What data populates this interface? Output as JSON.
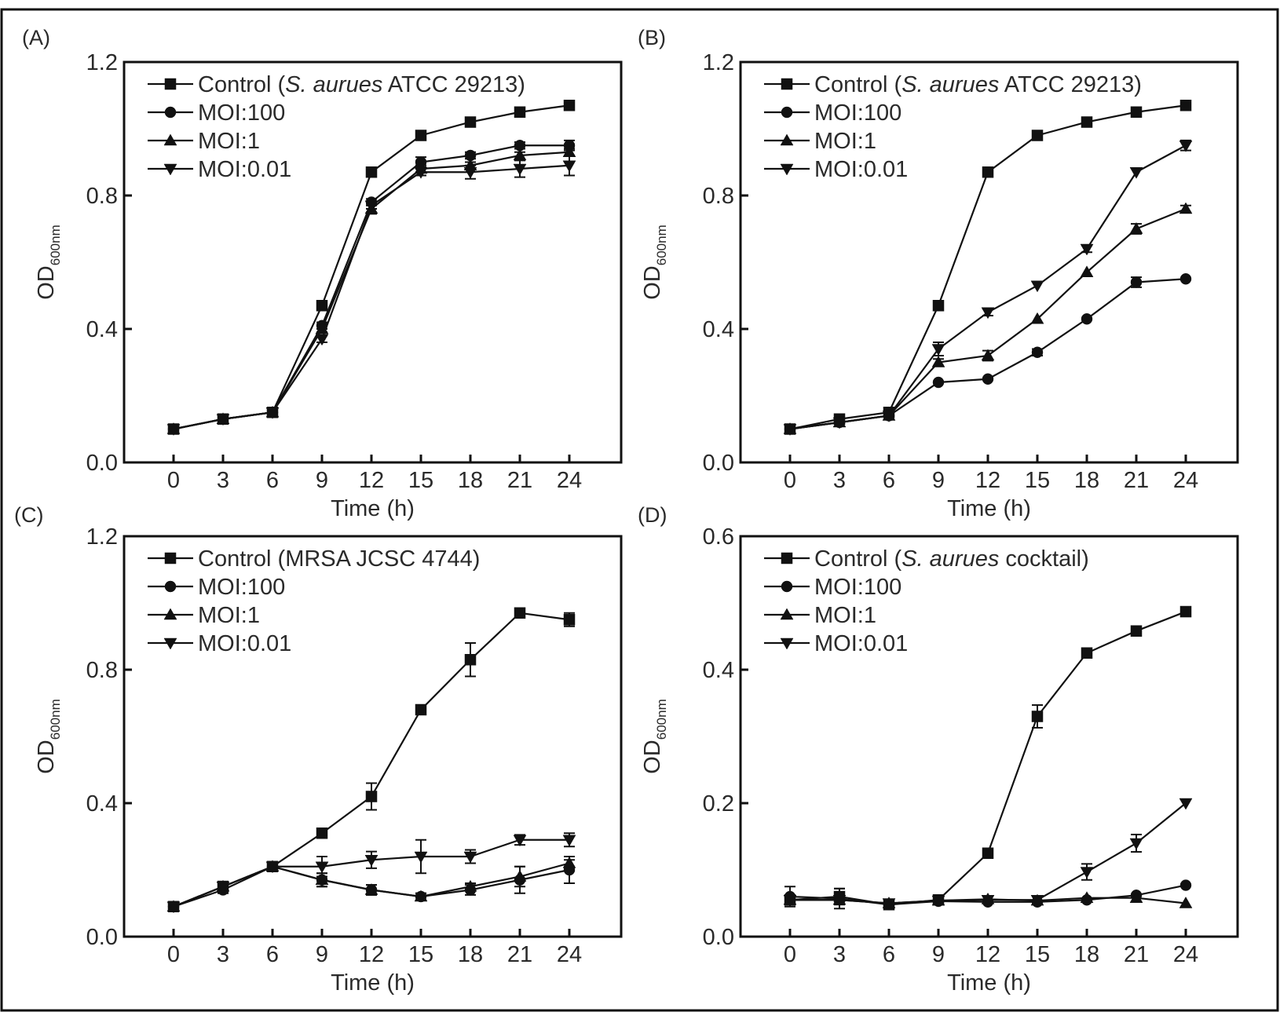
{
  "figure": {
    "panels_count": 4
  },
  "chart_data": [
    {
      "panel": "(A)",
      "type": "line",
      "title": "",
      "xlabel": "Time (h)",
      "ylabel": "OD",
      "ylabel_subscript": "600nm",
      "x": [
        0,
        3,
        6,
        9,
        12,
        15,
        18,
        21,
        24
      ],
      "xticks": [
        "0",
        "3",
        "6",
        "9",
        "12",
        "15",
        "18",
        "21",
        "24"
      ],
      "ylim": [
        0.0,
        1.2
      ],
      "yticks": [
        "0.0",
        "0.4",
        "0.8",
        "1.2"
      ],
      "ytick_values": [
        0.0,
        0.4,
        0.8,
        1.2
      ],
      "grid": false,
      "legend_position": "top-left",
      "series": [
        {
          "name": "Control (S. aurues ATCC 29213)",
          "name_parts": [
            "Control (",
            "S. aurues",
            " ATCC 29213)"
          ],
          "marker": "square",
          "values": [
            0.1,
            0.13,
            0.15,
            0.47,
            0.87,
            0.98,
            1.02,
            1.05,
            1.07
          ],
          "errors": [
            0.005,
            0.005,
            0.005,
            0.01,
            0.01,
            0.005,
            0.005,
            0.005,
            0.005
          ]
        },
        {
          "name": "MOI:100",
          "marker": "circle",
          "values": [
            0.1,
            0.13,
            0.15,
            0.41,
            0.78,
            0.9,
            0.92,
            0.95,
            0.95
          ],
          "errors": [
            0.005,
            0.005,
            0.005,
            0.01,
            0.01,
            0.015,
            0.01,
            0.01,
            0.015
          ]
        },
        {
          "name": "MOI:1",
          "marker": "triangle-up",
          "values": [
            0.1,
            0.13,
            0.15,
            0.4,
            0.76,
            0.88,
            0.89,
            0.92,
            0.93
          ],
          "errors": [
            0.005,
            0.005,
            0.005,
            0.01,
            0.015,
            0.01,
            0.01,
            0.01,
            0.01
          ]
        },
        {
          "name": "MOI:0.01",
          "marker": "triangle-down",
          "values": [
            0.1,
            0.13,
            0.15,
            0.37,
            0.77,
            0.87,
            0.87,
            0.88,
            0.89
          ],
          "errors": [
            0.005,
            0.005,
            0.005,
            0.01,
            0.01,
            0.01,
            0.02,
            0.025,
            0.03
          ]
        }
      ]
    },
    {
      "panel": "(B)",
      "type": "line",
      "title": "",
      "xlabel": "Time (h)",
      "ylabel": "OD",
      "ylabel_subscript": "600nm",
      "x": [
        0,
        3,
        6,
        9,
        12,
        15,
        18,
        21,
        24
      ],
      "xticks": [
        "0",
        "3",
        "6",
        "9",
        "12",
        "15",
        "18",
        "21",
        "24"
      ],
      "ylim": [
        0.0,
        1.2
      ],
      "yticks": [
        "0.0",
        "0.4",
        "0.8",
        "1.2"
      ],
      "ytick_values": [
        0.0,
        0.4,
        0.8,
        1.2
      ],
      "grid": false,
      "legend_position": "top-left",
      "series": [
        {
          "name": "Control (S. aurues ATCC 29213)",
          "name_parts": [
            "Control (",
            "S. aurues",
            " ATCC 29213)"
          ],
          "marker": "square",
          "values": [
            0.1,
            0.13,
            0.15,
            0.47,
            0.87,
            0.98,
            1.02,
            1.05,
            1.07
          ],
          "errors": [
            0.005,
            0.005,
            0.005,
            0.01,
            0.01,
            0.005,
            0.005,
            0.005,
            0.005
          ]
        },
        {
          "name": "MOI:100",
          "marker": "circle",
          "values": [
            0.1,
            0.12,
            0.14,
            0.24,
            0.25,
            0.33,
            0.43,
            0.54,
            0.55
          ],
          "errors": [
            0.005,
            0.005,
            0.005,
            0.005,
            0.005,
            0.01,
            0.005,
            0.015,
            0.005
          ]
        },
        {
          "name": "MOI:1",
          "marker": "triangle-up",
          "values": [
            0.1,
            0.12,
            0.14,
            0.3,
            0.32,
            0.43,
            0.57,
            0.7,
            0.76
          ],
          "errors": [
            0.005,
            0.005,
            0.005,
            0.01,
            0.015,
            0.005,
            0.005,
            0.015,
            0.01
          ]
        },
        {
          "name": "MOI:0.01",
          "marker": "triangle-down",
          "values": [
            0.1,
            0.12,
            0.14,
            0.34,
            0.45,
            0.53,
            0.64,
            0.87,
            0.95
          ],
          "errors": [
            0.005,
            0.005,
            0.005,
            0.02,
            0.01,
            0.005,
            0.01,
            0.005,
            0.015
          ]
        }
      ]
    },
    {
      "panel": "(C)",
      "type": "line",
      "title": "",
      "xlabel": "Time (h)",
      "ylabel": "OD",
      "ylabel_subscript": "600nm",
      "x": [
        0,
        3,
        6,
        9,
        12,
        15,
        18,
        21,
        24
      ],
      "xticks": [
        "0",
        "3",
        "6",
        "9",
        "12",
        "15",
        "18",
        "21",
        "24"
      ],
      "ylim": [
        0.0,
        1.2
      ],
      "yticks": [
        "0.0",
        "0.4",
        "0.8",
        "1.2"
      ],
      "ytick_values": [
        0.0,
        0.4,
        0.8,
        1.2
      ],
      "grid": false,
      "legend_position": "top-left",
      "series": [
        {
          "name": "Control (MRSA JCSC 4744)",
          "name_parts": [
            "Control (MRSA JCSC 4744)",
            "",
            ""
          ],
          "marker": "square",
          "values": [
            0.09,
            0.15,
            0.21,
            0.31,
            0.42,
            0.68,
            0.83,
            0.97,
            0.95
          ],
          "errors": [
            0.005,
            0.015,
            0.005,
            0.01,
            0.04,
            0.005,
            0.05,
            0.005,
            0.02
          ]
        },
        {
          "name": "MOI:100",
          "marker": "circle",
          "values": [
            0.09,
            0.14,
            0.21,
            0.17,
            0.14,
            0.12,
            0.14,
            0.17,
            0.2
          ],
          "errors": [
            0.005,
            0.01,
            0.005,
            0.02,
            0.015,
            0.01,
            0.015,
            0.04,
            0.04
          ]
        },
        {
          "name": "MOI:1",
          "marker": "triangle-up",
          "values": [
            0.09,
            0.15,
            0.21,
            0.17,
            0.14,
            0.12,
            0.15,
            0.18,
            0.22
          ],
          "errors": [
            0.005,
            0.01,
            0.005,
            0.02,
            0.015,
            0.01,
            0.01,
            0.03,
            0.01
          ]
        },
        {
          "name": "MOI:0.01",
          "marker": "triangle-down",
          "values": [
            0.09,
            0.15,
            0.21,
            0.21,
            0.23,
            0.24,
            0.24,
            0.29,
            0.29
          ],
          "errors": [
            0.005,
            0.015,
            0.005,
            0.03,
            0.025,
            0.05,
            0.02,
            0.015,
            0.02
          ]
        }
      ]
    },
    {
      "panel": "(D)",
      "type": "line",
      "title": "",
      "xlabel": "Time (h)",
      "ylabel": "OD",
      "ylabel_subscript": "600nm",
      "x": [
        0,
        3,
        6,
        9,
        12,
        15,
        18,
        21,
        24
      ],
      "xticks": [
        "0",
        "3",
        "6",
        "9",
        "12",
        "15",
        "18",
        "21",
        "24"
      ],
      "ylim": [
        0.0,
        0.6
      ],
      "yticks": [
        "0.0",
        "0.2",
        "0.4",
        "0.6"
      ],
      "ytick_values": [
        0.0,
        0.2,
        0.4,
        0.6
      ],
      "grid": false,
      "legend_position": "top-left",
      "series": [
        {
          "name": "Control (S. aurues cocktail)",
          "name_parts": [
            "Control (",
            "S. aurues",
            " cocktail)"
          ],
          "marker": "square",
          "values": [
            0.055,
            0.06,
            0.048,
            0.055,
            0.125,
            0.33,
            0.425,
            0.458,
            0.487
          ],
          "errors": [
            0.005,
            0.012,
            0.003,
            0.003,
            0.003,
            0.017,
            0.003,
            0.003,
            0.003
          ]
        },
        {
          "name": "MOI:100",
          "marker": "circle",
          "values": [
            0.06,
            0.057,
            0.048,
            0.053,
            0.052,
            0.052,
            0.055,
            0.062,
            0.077
          ],
          "errors": [
            0.015,
            0.015,
            0.003,
            0.003,
            0.003,
            0.003,
            0.003,
            0.003,
            0.003
          ]
        },
        {
          "name": "MOI:1",
          "marker": "triangle-up",
          "values": [
            0.055,
            0.055,
            0.05,
            0.054,
            0.056,
            0.054,
            0.058,
            0.058,
            0.05
          ],
          "errors": [
            0.005,
            0.005,
            0.003,
            0.003,
            0.003,
            0.003,
            0.003,
            0.003,
            0.003
          ]
        },
        {
          "name": "MOI:0.01",
          "marker": "triangle-down",
          "values": [
            0.055,
            0.055,
            0.05,
            0.054,
            0.055,
            0.055,
            0.097,
            0.14,
            0.2
          ],
          "errors": [
            0.005,
            0.005,
            0.003,
            0.003,
            0.003,
            0.003,
            0.012,
            0.013,
            0.003
          ]
        }
      ]
    }
  ]
}
